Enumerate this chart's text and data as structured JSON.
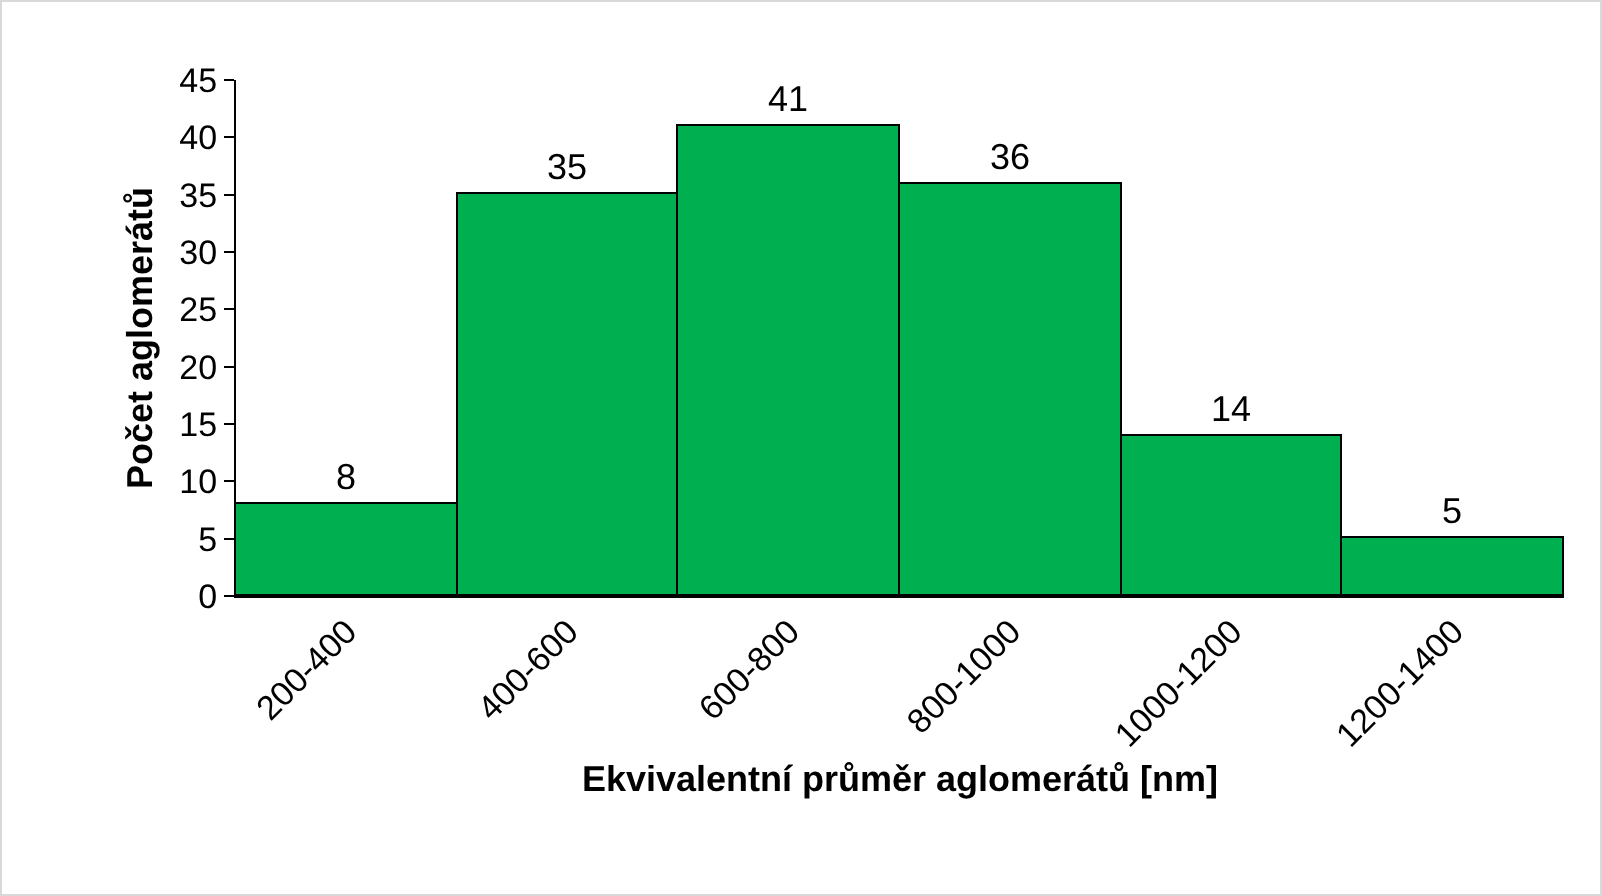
{
  "chart_data": {
    "type": "bar",
    "xlabel": "Ekvivalentní průměr aglomerátů [nm]",
    "ylabel": "Počet aglomerátů",
    "categories": [
      "200-400",
      "400-600",
      "600-800",
      "800-1000",
      "1000-1200",
      "1200-1400"
    ],
    "values": [
      8,
      35,
      41,
      36,
      14,
      5
    ],
    "color": "#00b050",
    "ylim": [
      0,
      45
    ],
    "yticks": [
      0,
      5,
      10,
      15,
      20,
      25,
      30,
      35,
      40,
      45
    ],
    "grid": false,
    "legend": false,
    "data_labels": true
  }
}
